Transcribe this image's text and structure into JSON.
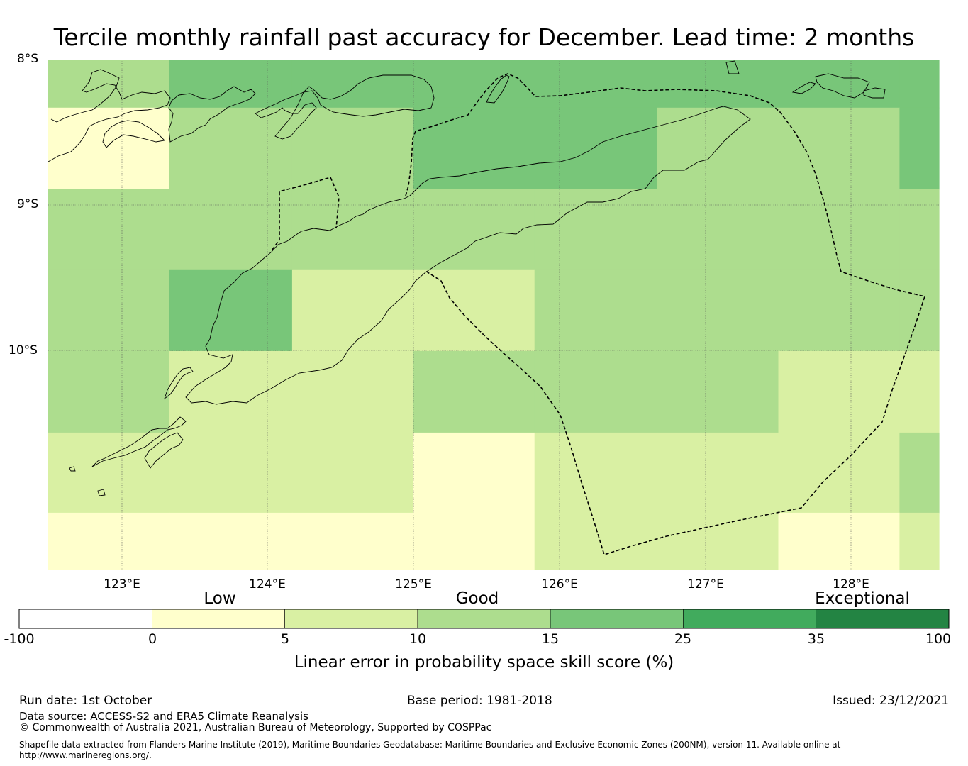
{
  "title": "Tercile monthly rainfall past accuracy for December. Lead time: 2 months",
  "map": {
    "lat_labels": [
      "8°S",
      "9°S",
      "10°S"
    ],
    "lon_labels": [
      "123°E",
      "124°E",
      "125°E",
      "126°E",
      "127°E",
      "128°E"
    ],
    "lon_range": [
      122.5,
      128.6
    ],
    "lat_range": [
      -8.0,
      -11.5
    ],
    "grid_cells": {
      "lon_edges": [
        122.5,
        123.33,
        124.17,
        125.0,
        125.83,
        126.67,
        127.5,
        128.33,
        128.6
      ],
      "lat_edges": [
        -8.0,
        -8.33,
        -8.89,
        -9.44,
        -10.0,
        -10.56,
        -11.11,
        -11.5
      ],
      "values": [
        [
          12,
          20,
          20,
          20,
          20,
          20,
          20,
          20
        ],
        [
          3,
          12,
          12,
          20,
          20,
          12,
          12,
          20
        ],
        [
          12,
          12,
          12,
          12,
          12,
          12,
          12,
          12
        ],
        [
          12,
          20,
          8,
          8,
          12,
          12,
          12,
          12
        ],
        [
          12,
          8,
          8,
          12,
          12,
          12,
          8,
          8
        ],
        [
          8,
          8,
          8,
          3,
          8,
          8,
          8,
          12
        ],
        [
          3,
          3,
          3,
          3,
          8,
          8,
          3,
          8
        ]
      ]
    }
  },
  "colorbar": {
    "category_labels": [
      "Low",
      "Good",
      "Exceptional"
    ],
    "ticks": [
      "-100",
      "0",
      "5",
      "10",
      "15",
      "25",
      "35",
      "100"
    ],
    "colors": [
      "#ffffff",
      "#ffffcc",
      "#d9f0a3",
      "#addd8e",
      "#78c679",
      "#41ab5d",
      "#238443"
    ],
    "title": "Linear error in probability space skill score (%)"
  },
  "footer": {
    "run_date": "Run date: 1st October",
    "base_period": "Base period: 1981-2018",
    "issued": "Issued: 23/12/2021",
    "data_source": "Data source: ACCESS-S2 and ERA5 Climate Reanalysis",
    "copyright": "© Commonwealth of Australia 2021, Australian Bureau of Meteorology, Supported by COSPPac",
    "shapefile_line1": "Shapefile data extracted from Flanders Marine Institute (2019), Maritime Boundaries Geodatabase: Maritime Boundaries and Exclusive Economic Zones (200NM), version 11. Available online at",
    "shapefile_line2": "http://www.marineregions.org/."
  }
}
